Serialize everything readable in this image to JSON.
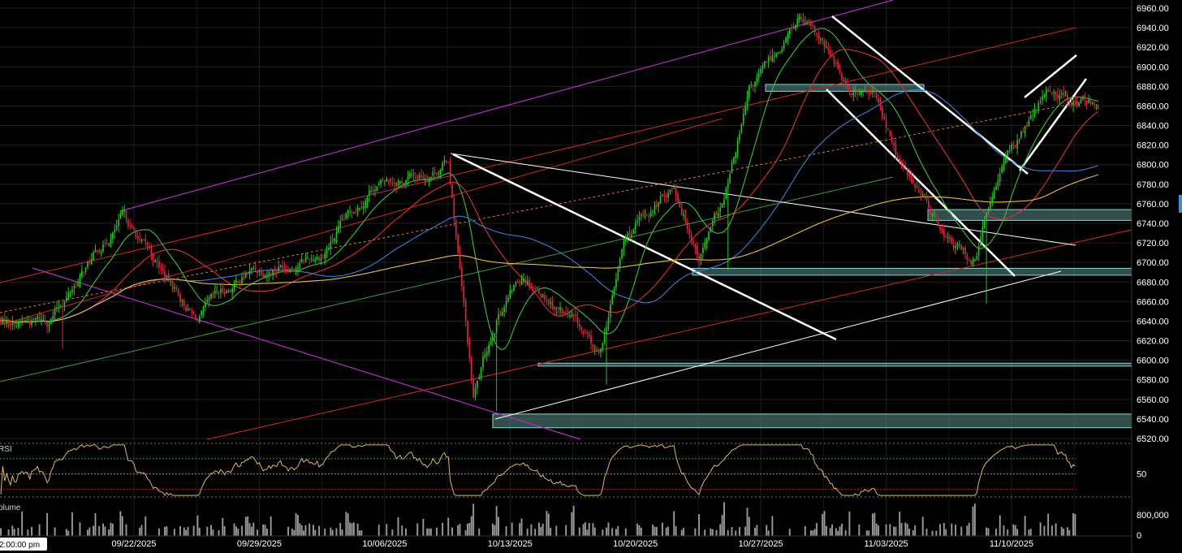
{
  "chart_data": {
    "type": "candlestick",
    "x_axis": {
      "tick_labels": [
        "09/22/2025",
        "09/29/2025",
        "10/06/2025",
        "10/13/2025",
        "10/20/2025",
        "10/27/2025",
        "11/03/2025",
        "11/10/2025"
      ],
      "cursor_label": "2:00:00 pm"
    },
    "y_axis": {
      "ylim": [
        6520,
        6960
      ],
      "tick_labels": [
        "6960.00",
        "6940.00",
        "6920.00",
        "6900.00",
        "6880.00",
        "6860.00",
        "6840.00",
        "6820.00",
        "6800.00",
        "6780.00",
        "6760.00",
        "6740.00",
        "6720.00",
        "6700.00",
        "6680.00",
        "6660.00",
        "6640.00",
        "6620.00",
        "6600.00",
        "6580.00",
        "6560.00",
        "6540.00",
        "6520.00"
      ]
    },
    "price_anchors": [
      {
        "date": "09/17/2025",
        "close": 6640
      },
      {
        "date": "09/22/2025",
        "close": 6745
      },
      {
        "date": "09/25/2025",
        "close": 6640
      },
      {
        "date": "09/29/2025",
        "close": 6690
      },
      {
        "date": "10/02/2025",
        "close": 6710
      },
      {
        "date": "10/06/2025",
        "close": 6780
      },
      {
        "date": "10/08/2025",
        "close": 6790
      },
      {
        "date": "10/09/2025",
        "close": 6805
      },
      {
        "date": "10/10/2025",
        "close": 6560
      },
      {
        "date": "10/13/2025",
        "close": 6650
      },
      {
        "date": "10/14/2025",
        "close": 6690
      },
      {
        "date": "10/16/2025",
        "close": 6640
      },
      {
        "date": "10/17/2025",
        "close": 6600
      },
      {
        "date": "10/20/2025",
        "close": 6720
      },
      {
        "date": "10/22/2025",
        "close": 6780
      },
      {
        "date": "10/23/2025",
        "close": 6710
      },
      {
        "date": "10/24/2025",
        "close": 6760
      },
      {
        "date": "10/27/2025",
        "close": 6870
      },
      {
        "date": "10/29/2025",
        "close": 6950
      },
      {
        "date": "10/31/2025",
        "close": 6880
      },
      {
        "date": "11/03/2025",
        "close": 6870
      },
      {
        "date": "11/04/2025",
        "close": 6800
      },
      {
        "date": "11/06/2025",
        "close": 6720
      },
      {
        "date": "11/07/2025",
        "close": 6700
      },
      {
        "date": "11/10/2025",
        "close": 6800
      },
      {
        "date": "11/12/2025",
        "close": 6875
      },
      {
        "date": "11/13/2025",
        "close": 6865
      }
    ],
    "moving_averages": [
      {
        "color": "#3fbf3f"
      },
      {
        "color": "#e03030"
      },
      {
        "color": "#3a7fd0"
      },
      {
        "color": "#e6c040"
      }
    ],
    "support_zones": [
      {
        "from": 6875,
        "to": 6882
      },
      {
        "from": 6743,
        "to": 6754
      },
      {
        "from": 6687,
        "to": 6694
      },
      {
        "from": 6594,
        "to": 6597
      },
      {
        "from": 6531,
        "to": 6545
      }
    ],
    "indicator_pane": {
      "label": "RSI",
      "tick_label": "50"
    },
    "volume_pane": {
      "label": "Volume",
      "tick_labels": [
        "800,000",
        "0"
      ]
    },
    "colors": {
      "up": "#22c71e",
      "down": "#e2243c",
      "zone_fill": "#5a8d8a",
      "zone_stroke": "#8fd8d4",
      "rsi": "#e0b860",
      "trend_purple": "#b030c0",
      "trend_red": "#d02828",
      "trend_white": "#ffffff",
      "trend_green": "#3c9a3c",
      "volume": "#9a9a9a"
    }
  }
}
